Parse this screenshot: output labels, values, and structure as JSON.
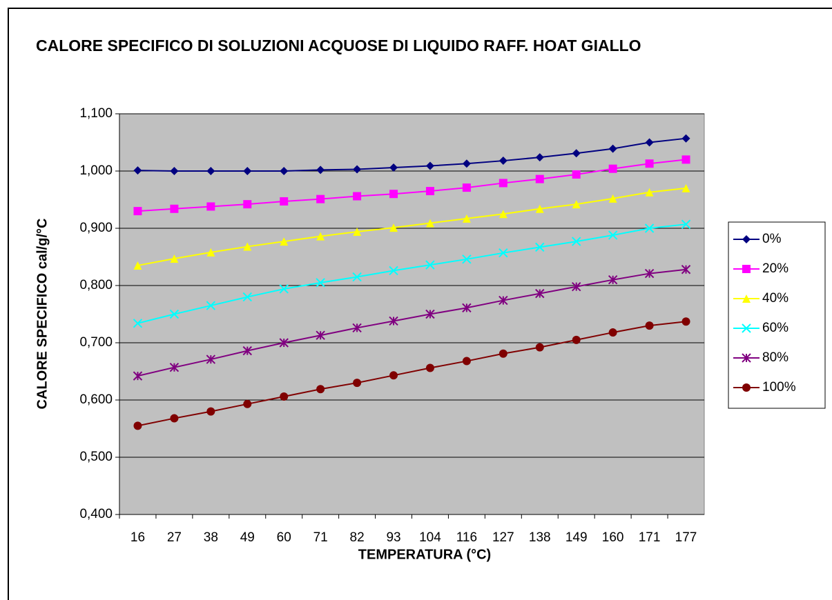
{
  "chart_data": {
    "type": "line",
    "title": "CALORE SPECIFICO DI SOLUZIONI ACQUOSE DI LIQUIDO RAFF. HOAT GIALLO",
    "xlabel": "TEMPERATURA (°C)",
    "ylabel": "CALORE SPECIFICO cal/g/°C",
    "categories": [
      "16",
      "27",
      "38",
      "49",
      "60",
      "71",
      "82",
      "93",
      "104",
      "116",
      "127",
      "138",
      "149",
      "160",
      "171",
      "177"
    ],
    "ylim": [
      0.4,
      1.1
    ],
    "yticks": [
      {
        "value": 0.4,
        "label": "0,400"
      },
      {
        "value": 0.5,
        "label": "0,500"
      },
      {
        "value": 0.6,
        "label": "0,600"
      },
      {
        "value": 0.7,
        "label": "0,700"
      },
      {
        "value": 0.8,
        "label": "0,800"
      },
      {
        "value": 0.9,
        "label": "0,900"
      },
      {
        "value": 1.0,
        "label": "1,000"
      },
      {
        "value": 1.1,
        "label": "1,100"
      }
    ],
    "grid": true,
    "legend": "right",
    "series": [
      {
        "name": "0%",
        "color": "#000080",
        "marker": "diamond",
        "values": [
          1.001,
          1.0,
          1.0,
          1.0,
          1.0,
          1.002,
          1.003,
          1.006,
          1.009,
          1.013,
          1.018,
          1.024,
          1.031,
          1.039,
          1.05,
          1.057
        ]
      },
      {
        "name": "20%",
        "color": "#ff00ff",
        "marker": "square",
        "values": [
          0.93,
          0.934,
          0.938,
          0.942,
          0.947,
          0.951,
          0.956,
          0.96,
          0.965,
          0.971,
          0.979,
          0.986,
          0.994,
          1.004,
          1.013,
          1.02
        ]
      },
      {
        "name": "40%",
        "color": "#ffff00",
        "marker": "triangle",
        "values": [
          0.835,
          0.847,
          0.858,
          0.868,
          0.877,
          0.886,
          0.894,
          0.901,
          0.909,
          0.917,
          0.925,
          0.934,
          0.942,
          0.952,
          0.963,
          0.97
        ]
      },
      {
        "name": "60%",
        "color": "#00ffff",
        "marker": "x",
        "values": [
          0.734,
          0.75,
          0.765,
          0.78,
          0.794,
          0.805,
          0.815,
          0.826,
          0.836,
          0.846,
          0.857,
          0.867,
          0.877,
          0.888,
          0.9,
          0.907
        ]
      },
      {
        "name": "80%",
        "color": "#800080",
        "marker": "star",
        "values": [
          0.642,
          0.657,
          0.671,
          0.686,
          0.7,
          0.713,
          0.726,
          0.738,
          0.75,
          0.761,
          0.774,
          0.786,
          0.798,
          0.81,
          0.821,
          0.828
        ]
      },
      {
        "name": "100%",
        "color": "#800000",
        "marker": "circle",
        "values": [
          0.555,
          0.568,
          0.58,
          0.593,
          0.606,
          0.619,
          0.63,
          0.643,
          0.656,
          0.668,
          0.681,
          0.692,
          0.705,
          0.718,
          0.73,
          0.737
        ]
      }
    ]
  }
}
